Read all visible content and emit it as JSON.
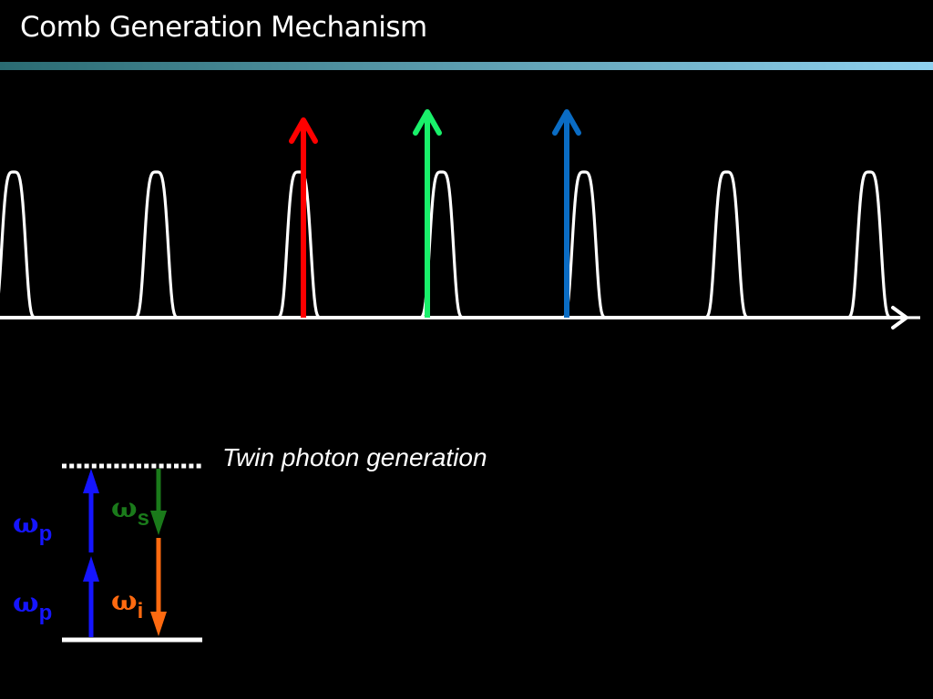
{
  "slide": {
    "title": "Comb Generation Mechanism",
    "title_bar_gradient": [
      "#2a6b72",
      "#8fd1ef"
    ]
  },
  "comb": {
    "line_color": "#ffffff",
    "peak_count": 7
  },
  "mode_arrows": [
    {
      "name": "red-mode-arrow",
      "color": "#ff0000"
    },
    {
      "name": "green-mode-arrow",
      "color": "#19f06a"
    },
    {
      "name": "blue-mode-arrow",
      "color": "#0a6cc4"
    }
  ],
  "energy_diagram": {
    "caption": "Twin photon generation",
    "pump_color": "#1515ff",
    "signal_color": "#1a7a1a",
    "idler_color": "#ff6a10",
    "labels": [
      {
        "symbol": "ω",
        "sub": "p"
      },
      {
        "symbol": "ω",
        "sub": "p"
      },
      {
        "symbol": "ω",
        "sub": "s"
      },
      {
        "symbol": "ω",
        "sub": "i"
      }
    ]
  }
}
